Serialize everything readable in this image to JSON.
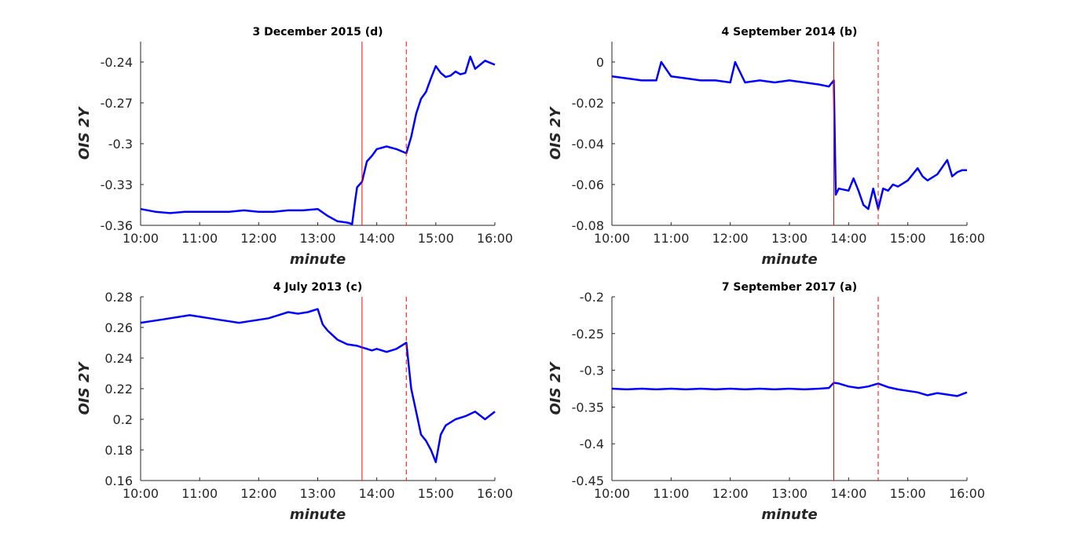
{
  "chart_data": [
    {
      "type": "line",
      "title": "3 December 2015 (d)",
      "xlabel": "minute",
      "ylabel": "OIS 2Y",
      "xlim": [
        "10:00",
        "16:00"
      ],
      "ylim": [
        -0.36,
        -0.225
      ],
      "xticks": [
        "10:00",
        "11:00",
        "12:00",
        "13:00",
        "14:00",
        "15:00",
        "16:00"
      ],
      "yticks": [
        -0.36,
        -0.33,
        -0.3,
        -0.27,
        -0.24
      ],
      "ytick_labels": [
        "-0.36",
        "-0.33",
        "-0.3",
        "-0.27",
        "-0.24"
      ],
      "vertical_lines": [
        {
          "x": "13:45",
          "style": "solid",
          "color": "#ff0000"
        },
        {
          "x": "14:30",
          "style": "dashed",
          "color": "#ff0000"
        }
      ],
      "series": [
        {
          "color": "#0000ff",
          "x": [
            "10:00",
            "10:15",
            "10:30",
            "10:45",
            "11:00",
            "11:15",
            "11:30",
            "11:45",
            "12:00",
            "12:15",
            "12:30",
            "12:45",
            "13:00",
            "13:10",
            "13:20",
            "13:30",
            "13:35",
            "13:38",
            "13:40",
            "13:45",
            "13:50",
            "13:55",
            "14:00",
            "14:10",
            "14:20",
            "14:30",
            "14:35",
            "14:40",
            "14:45",
            "14:50",
            "14:55",
            "15:00",
            "15:05",
            "15:10",
            "15:15",
            "15:20",
            "15:25",
            "15:30",
            "15:35",
            "15:40",
            "15:45",
            "15:50",
            "16:00"
          ],
          "y": [
            -0.348,
            -0.35,
            -0.351,
            -0.35,
            -0.35,
            -0.35,
            -0.35,
            -0.349,
            -0.35,
            -0.35,
            -0.349,
            -0.349,
            -0.348,
            -0.353,
            -0.357,
            -0.358,
            -0.359,
            -0.342,
            -0.332,
            -0.328,
            -0.313,
            -0.309,
            -0.304,
            -0.302,
            -0.304,
            -0.307,
            -0.295,
            -0.278,
            -0.267,
            -0.262,
            -0.252,
            -0.243,
            -0.248,
            -0.251,
            -0.25,
            -0.247,
            -0.249,
            -0.248,
            -0.236,
            -0.245,
            -0.242,
            -0.239,
            -0.242
          ]
        }
      ]
    },
    {
      "type": "line",
      "title": "4 September 2014 (b)",
      "xlabel": "minute",
      "ylabel": "OIS 2Y",
      "xlim": [
        "10:00",
        "16:00"
      ],
      "ylim": [
        -0.08,
        0.01
      ],
      "xticks": [
        "10:00",
        "11:00",
        "12:00",
        "13:00",
        "14:00",
        "15:00",
        "16:00"
      ],
      "yticks": [
        -0.08,
        -0.06,
        -0.04,
        -0.02,
        0
      ],
      "ytick_labels": [
        "-0.08",
        "-0.06",
        "-0.04",
        "-0.02",
        "0"
      ],
      "vertical_lines": [
        {
          "x": "13:45",
          "style": "solid",
          "color": "#ff0000"
        },
        {
          "x": "14:30",
          "style": "dashed",
          "color": "#ff0000"
        }
      ],
      "series": [
        {
          "color": "#0000ff",
          "x": [
            "10:00",
            "10:15",
            "10:30",
            "10:45",
            "10:50",
            "11:00",
            "11:15",
            "11:30",
            "11:45",
            "12:00",
            "12:05",
            "12:15",
            "12:30",
            "12:45",
            "13:00",
            "13:15",
            "13:30",
            "13:40",
            "13:45",
            "13:47",
            "13:50",
            "14:00",
            "14:05",
            "14:10",
            "14:15",
            "14:20",
            "14:25",
            "14:30",
            "14:35",
            "14:40",
            "14:45",
            "14:50",
            "15:00",
            "15:10",
            "15:15",
            "15:20",
            "15:30",
            "15:40",
            "15:45",
            "15:50",
            "15:55",
            "16:00"
          ],
          "y": [
            -0.007,
            -0.008,
            -0.009,
            -0.009,
            0.0,
            -0.007,
            -0.008,
            -0.009,
            -0.009,
            -0.01,
            0.0,
            -0.01,
            -0.009,
            -0.01,
            -0.009,
            -0.01,
            -0.011,
            -0.012,
            -0.009,
            -0.065,
            -0.062,
            -0.063,
            -0.057,
            -0.063,
            -0.07,
            -0.072,
            -0.062,
            -0.072,
            -0.062,
            -0.063,
            -0.06,
            -0.061,
            -0.058,
            -0.052,
            -0.056,
            -0.058,
            -0.055,
            -0.048,
            -0.056,
            -0.054,
            -0.053,
            -0.053
          ]
        }
      ]
    },
    {
      "type": "line",
      "title": "4 July 2013 (c)",
      "xlabel": "minute",
      "ylabel": "OIS 2Y",
      "xlim": [
        "10:00",
        "16:00"
      ],
      "ylim": [
        0.16,
        0.28
      ],
      "xticks": [
        "10:00",
        "11:00",
        "12:00",
        "13:00",
        "14:00",
        "15:00",
        "16:00"
      ],
      "yticks": [
        0.16,
        0.18,
        0.2,
        0.22,
        0.24,
        0.26,
        0.28
      ],
      "ytick_labels": [
        "0.16",
        "0.18",
        "0.2",
        "0.22",
        "0.24",
        "0.26",
        "0.28"
      ],
      "vertical_lines": [
        {
          "x": "13:45",
          "style": "solid",
          "color": "#ff0000"
        },
        {
          "x": "14:30",
          "style": "dashed",
          "color": "#ff0000"
        }
      ],
      "series": [
        {
          "color": "#0000ff",
          "x": [
            "10:00",
            "10:10",
            "10:20",
            "10:30",
            "10:40",
            "10:50",
            "11:00",
            "11:10",
            "11:20",
            "11:30",
            "11:40",
            "11:50",
            "12:00",
            "12:10",
            "12:20",
            "12:30",
            "12:40",
            "12:50",
            "13:00",
            "13:05",
            "13:10",
            "13:15",
            "13:20",
            "13:30",
            "13:40",
            "13:45",
            "13:50",
            "13:55",
            "14:00",
            "14:10",
            "14:20",
            "14:30",
            "14:35",
            "14:40",
            "14:45",
            "14:50",
            "14:55",
            "15:00",
            "15:05",
            "15:10",
            "15:20",
            "15:30",
            "15:40",
            "15:50",
            "16:00"
          ],
          "y": [
            0.263,
            0.264,
            0.265,
            0.266,
            0.267,
            0.268,
            0.267,
            0.266,
            0.265,
            0.264,
            0.263,
            0.264,
            0.265,
            0.266,
            0.268,
            0.27,
            0.269,
            0.27,
            0.272,
            0.262,
            0.258,
            0.255,
            0.252,
            0.249,
            0.248,
            0.247,
            0.246,
            0.245,
            0.246,
            0.244,
            0.246,
            0.25,
            0.22,
            0.205,
            0.19,
            0.186,
            0.18,
            0.172,
            0.19,
            0.196,
            0.2,
            0.202,
            0.205,
            0.2,
            0.205
          ]
        }
      ]
    },
    {
      "type": "line",
      "title": "7 September 2017 (a)",
      "xlabel": "minute",
      "ylabel": "OIS 2Y",
      "xlim": [
        "10:00",
        "16:00"
      ],
      "ylim": [
        -0.45,
        -0.2
      ],
      "xticks": [
        "10:00",
        "11:00",
        "12:00",
        "13:00",
        "14:00",
        "15:00",
        "16:00"
      ],
      "yticks": [
        -0.45,
        -0.4,
        -0.35,
        -0.3,
        -0.25,
        -0.2
      ],
      "ytick_labels": [
        "-0.45",
        "-0.4",
        "-0.35",
        "-0.3",
        "-0.25",
        "-0.2"
      ],
      "vertical_lines": [
        {
          "x": "13:45",
          "style": "solid",
          "color": "#ff0000"
        },
        {
          "x": "14:30",
          "style": "dashed",
          "color": "#ff0000"
        }
      ],
      "series": [
        {
          "color": "#0000ff",
          "x": [
            "10:00",
            "10:15",
            "10:30",
            "10:45",
            "11:00",
            "11:15",
            "11:30",
            "11:45",
            "12:00",
            "12:15",
            "12:30",
            "12:45",
            "13:00",
            "13:15",
            "13:30",
            "13:40",
            "13:45",
            "13:50",
            "14:00",
            "14:10",
            "14:20",
            "14:30",
            "14:40",
            "14:50",
            "15:00",
            "15:10",
            "15:20",
            "15:30",
            "15:40",
            "15:50",
            "16:00"
          ],
          "y": [
            -0.325,
            -0.326,
            -0.325,
            -0.326,
            -0.325,
            -0.326,
            -0.325,
            -0.326,
            -0.325,
            -0.326,
            -0.325,
            -0.326,
            -0.325,
            -0.326,
            -0.325,
            -0.324,
            -0.317,
            -0.318,
            -0.322,
            -0.324,
            -0.322,
            -0.318,
            -0.323,
            -0.326,
            -0.328,
            -0.33,
            -0.334,
            -0.331,
            -0.333,
            -0.335,
            -0.33
          ]
        }
      ]
    }
  ]
}
